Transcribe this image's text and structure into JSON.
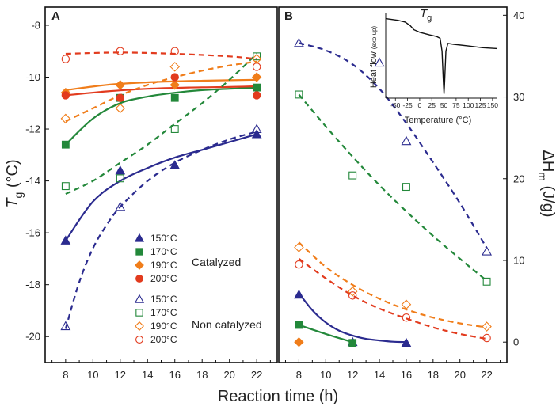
{
  "figure": {
    "shared_xlabel": "Reaction time (h)",
    "legend": {
      "group_catalyzed": "Catalyzed",
      "group_non_catalyzed": "Non catalyzed",
      "entries_catalyzed": [
        {
          "label": "150°C",
          "marker": "triangle",
          "filled": true,
          "color": "#2b2b8f"
        },
        {
          "label": "170°C",
          "marker": "square",
          "filled": true,
          "color": "#23883a"
        },
        {
          "label": "190°C",
          "marker": "diamond",
          "filled": true,
          "color": "#f07d1a"
        },
        {
          "label": "200°C",
          "marker": "circle",
          "filled": true,
          "color": "#e23b1e"
        }
      ],
      "entries_non_catalyzed": [
        {
          "label": "150°C",
          "marker": "triangle",
          "filled": false,
          "color": "#2b2b8f"
        },
        {
          "label": "170°C",
          "marker": "square",
          "filled": false,
          "color": "#23883a"
        },
        {
          "label": "190°C",
          "marker": "diamond",
          "filled": false,
          "color": "#f07d1a"
        },
        {
          "label": "200°C",
          "marker": "circle",
          "filled": false,
          "color": "#e23b1e"
        }
      ]
    }
  },
  "chart_data": [
    {
      "panel": "A",
      "type": "scatter",
      "xlabel": "Reaction time (h)",
      "ylabel_main": "T",
      "ylabel_sub": "g",
      "ylabel_rest": " (°C)",
      "xlim": [
        6.5,
        23.5
      ],
      "ylim": [
        -21,
        -7.3
      ],
      "xticks": [
        8,
        10,
        12,
        14,
        16,
        18,
        20,
        22
      ],
      "yticks": [
        -20,
        -18,
        -16,
        -14,
        -12,
        -10,
        -8
      ],
      "series": [
        {
          "name": "150°C catalyzed",
          "marker": "triangle",
          "filled": true,
          "color": "#2b2b8f",
          "line": "solid",
          "x": [
            8,
            12,
            16,
            22
          ],
          "y": [
            -16.3,
            -13.6,
            -13.4,
            -12.2
          ],
          "fit": [
            [
              8,
              -16.3
            ],
            [
              10,
              -14.8
            ],
            [
              12,
              -14.0
            ],
            [
              14,
              -13.5
            ],
            [
              16,
              -13.1
            ],
            [
              18,
              -12.8
            ],
            [
              20,
              -12.5
            ],
            [
              22,
              -12.2
            ]
          ]
        },
        {
          "name": "170°C catalyzed",
          "marker": "square",
          "filled": true,
          "color": "#23883a",
          "line": "solid",
          "x": [
            8,
            12,
            16,
            22
          ],
          "y": [
            -12.6,
            -10.8,
            -10.8,
            -10.4
          ],
          "fit": [
            [
              8,
              -12.6
            ],
            [
              10,
              -11.6
            ],
            [
              12,
              -11.0
            ],
            [
              14,
              -10.75
            ],
            [
              16,
              -10.6
            ],
            [
              18,
              -10.5
            ],
            [
              20,
              -10.45
            ],
            [
              22,
              -10.4
            ]
          ]
        },
        {
          "name": "190°C catalyzed",
          "marker": "diamond",
          "filled": true,
          "color": "#f07d1a",
          "line": "solid",
          "x": [
            8,
            12,
            16,
            22
          ],
          "y": [
            -10.6,
            -10.3,
            -10.3,
            -10.0
          ],
          "fit": [
            [
              8,
              -10.5
            ],
            [
              11,
              -10.3
            ],
            [
              14,
              -10.2
            ],
            [
              17,
              -10.15
            ],
            [
              20,
              -10.12
            ],
            [
              22,
              -10.1
            ]
          ]
        },
        {
          "name": "200°C catalyzed",
          "marker": "circle",
          "filled": true,
          "color": "#e23b1e",
          "line": "solid",
          "x": [
            8,
            12,
            16,
            22
          ],
          "y": [
            -10.7,
            -10.8,
            -10.0,
            -10.7
          ],
          "fit": [
            [
              8,
              -10.7
            ],
            [
              11,
              -10.55
            ],
            [
              14,
              -10.45
            ],
            [
              17,
              -10.4
            ],
            [
              20,
              -10.38
            ],
            [
              22,
              -10.35
            ]
          ]
        },
        {
          "name": "150°C non catalyzed",
          "marker": "triangle",
          "filled": false,
          "color": "#2b2b8f",
          "line": "dashed",
          "x": [
            8,
            12,
            16,
            22
          ],
          "y": [
            -19.6,
            -15.0,
            -13.4,
            -12.0
          ],
          "fit": [
            [
              8,
              -19.7
            ],
            [
              9,
              -17.9
            ],
            [
              10,
              -16.6
            ],
            [
              11,
              -15.7
            ],
            [
              12,
              -15.0
            ],
            [
              14,
              -14.0
            ],
            [
              16,
              -13.3
            ],
            [
              18,
              -12.8
            ],
            [
              20,
              -12.4
            ],
            [
              22,
              -12.1
            ]
          ]
        },
        {
          "name": "170°C non catalyzed",
          "marker": "square",
          "filled": false,
          "color": "#23883a",
          "line": "dashed",
          "x": [
            8,
            12,
            16,
            22
          ],
          "y": [
            -14.2,
            -13.9,
            -12.0,
            -9.2
          ],
          "fit": [
            [
              8,
              -14.5
            ],
            [
              10,
              -14.0
            ],
            [
              12,
              -13.3
            ],
            [
              14,
              -12.6
            ],
            [
              16,
              -11.8
            ],
            [
              18,
              -11.0
            ],
            [
              20,
              -10.1
            ],
            [
              22,
              -9.1
            ]
          ]
        },
        {
          "name": "190°C non catalyzed",
          "marker": "diamond",
          "filled": false,
          "color": "#f07d1a",
          "line": "dashed",
          "x": [
            8,
            12,
            16,
            22
          ],
          "y": [
            -11.6,
            -11.2,
            -9.6,
            -9.3
          ],
          "fit": [
            [
              8,
              -11.7
            ],
            [
              10,
              -11.2
            ],
            [
              12,
              -10.7
            ],
            [
              14,
              -10.3
            ],
            [
              16,
              -10.0
            ],
            [
              18,
              -9.75
            ],
            [
              20,
              -9.55
            ],
            [
              22,
              -9.4
            ]
          ]
        },
        {
          "name": "200°C non catalyzed",
          "marker": "circle",
          "filled": false,
          "color": "#e23b1e",
          "line": "dashed",
          "x": [
            8,
            12,
            16,
            22
          ],
          "y": [
            -9.3,
            -9.0,
            -9.0,
            -9.6
          ],
          "fit": [
            [
              8,
              -9.1
            ],
            [
              12,
              -9.05
            ],
            [
              16,
              -9.1
            ],
            [
              20,
              -9.2
            ],
            [
              22,
              -9.3
            ]
          ]
        }
      ]
    },
    {
      "panel": "B",
      "type": "scatter",
      "xlabel": "Reaction time (h)",
      "ylabel_main": "ΔH",
      "ylabel_sub": "m",
      "ylabel_rest": " (J/g)",
      "xlim": [
        6.5,
        23.5
      ],
      "ylim": [
        -2.5,
        41
      ],
      "xticks": [
        8,
        10,
        12,
        14,
        16,
        18,
        20,
        22
      ],
      "yticks": [
        0,
        10,
        20,
        30,
        40
      ],
      "series": [
        {
          "name": "150°C catalyzed",
          "marker": "triangle",
          "filled": true,
          "color": "#2b2b8f",
          "line": "solid",
          "x": [
            8,
            12,
            16
          ],
          "y": [
            5.8,
            0.0,
            -0.1
          ],
          "fit": [
            [
              8,
              6.0
            ],
            [
              9,
              3.9
            ],
            [
              10,
              2.4
            ],
            [
              11,
              1.4
            ],
            [
              12,
              0.8
            ],
            [
              13,
              0.4
            ],
            [
              14,
              0.2
            ],
            [
              15,
              0.05
            ],
            [
              16,
              0.0
            ]
          ]
        },
        {
          "name": "170°C catalyzed",
          "marker": "square",
          "filled": true,
          "color": "#23883a",
          "line": "solid",
          "x": [
            8,
            12
          ],
          "y": [
            2.1,
            -0.1
          ],
          "fit": [
            [
              8,
              2.1
            ],
            [
              10,
              1.0
            ],
            [
              12,
              0.0
            ]
          ]
        },
        {
          "name": "190°C catalyzed",
          "marker": "diamond",
          "filled": true,
          "color": "#f07d1a",
          "line": "none",
          "x": [
            8
          ],
          "y": [
            0.0
          ],
          "fit": []
        },
        {
          "name": "150°C non catalyzed",
          "marker": "triangle",
          "filled": false,
          "color": "#2b2b8f",
          "line": "dashed",
          "x": [
            8,
            14,
            16,
            22
          ],
          "y": [
            36.6,
            34.2,
            24.6,
            11.1
          ],
          "fit": [
            [
              8,
              36.6
            ],
            [
              10,
              35.7
            ],
            [
              12,
              34.0
            ],
            [
              14,
              31.0
            ],
            [
              16,
              26.8
            ],
            [
              18,
              22.0
            ],
            [
              20,
              17.0
            ],
            [
              22,
              11.5
            ]
          ]
        },
        {
          "name": "170°C non catalyzed",
          "marker": "square",
          "filled": false,
          "color": "#23883a",
          "line": "dashed",
          "x": [
            8,
            12,
            16,
            22
          ],
          "y": [
            30.3,
            20.4,
            19.0,
            7.4
          ],
          "fit": [
            [
              8,
              30.3
            ],
            [
              10,
              26.4
            ],
            [
              12,
              22.7
            ],
            [
              14,
              19.2
            ],
            [
              16,
              16.0
            ],
            [
              18,
              13.0
            ],
            [
              20,
              10.2
            ],
            [
              22,
              7.5
            ]
          ]
        },
        {
          "name": "190°C non catalyzed",
          "marker": "diamond",
          "filled": false,
          "color": "#f07d1a",
          "line": "dashed",
          "x": [
            8,
            12,
            16,
            22
          ],
          "y": [
            11.6,
            6.2,
            4.6,
            1.9
          ],
          "fit": [
            [
              8,
              12.2
            ],
            [
              10,
              9.2
            ],
            [
              12,
              7.0
            ],
            [
              14,
              5.3
            ],
            [
              16,
              4.0
            ],
            [
              18,
              3.0
            ],
            [
              20,
              2.3
            ],
            [
              22,
              1.8
            ]
          ]
        },
        {
          "name": "200°C non catalyzed",
          "marker": "circle",
          "filled": false,
          "color": "#e23b1e",
          "line": "dashed",
          "x": [
            8,
            12,
            16,
            22
          ],
          "y": [
            9.5,
            5.7,
            3.0,
            0.5
          ],
          "fit": [
            [
              8,
              10.2
            ],
            [
              10,
              7.8
            ],
            [
              12,
              5.7
            ],
            [
              14,
              4.1
            ],
            [
              16,
              2.9
            ],
            [
              18,
              1.8
            ],
            [
              20,
              1.0
            ],
            [
              22,
              0.4
            ]
          ]
        }
      ],
      "inset": {
        "title_main": "T",
        "title_sub": "g",
        "xlabel": "Temperature (°C)",
        "ylabel_main": "Heat flow ",
        "ylabel_sub": "(exo up)",
        "xticks": [
          -50,
          -25,
          0,
          25,
          50,
          75,
          100,
          125,
          150
        ],
        "xlim": [
          -70,
          160
        ],
        "ylim": [
          0,
          1
        ],
        "curve": [
          [
            -70,
            0.93
          ],
          [
            -45,
            0.91
          ],
          [
            -30,
            0.89
          ],
          [
            -20,
            0.85
          ],
          [
            -12,
            0.8
          ],
          [
            0,
            0.77
          ],
          [
            20,
            0.74
          ],
          [
            35,
            0.72
          ],
          [
            42,
            0.7
          ],
          [
            46,
            0.55
          ],
          [
            49,
            0.15
          ],
          [
            50,
            0.05
          ],
          [
            51,
            0.15
          ],
          [
            54,
            0.55
          ],
          [
            58,
            0.64
          ],
          [
            70,
            0.63
          ],
          [
            100,
            0.61
          ],
          [
            130,
            0.59
          ],
          [
            160,
            0.58
          ]
        ]
      }
    }
  ]
}
